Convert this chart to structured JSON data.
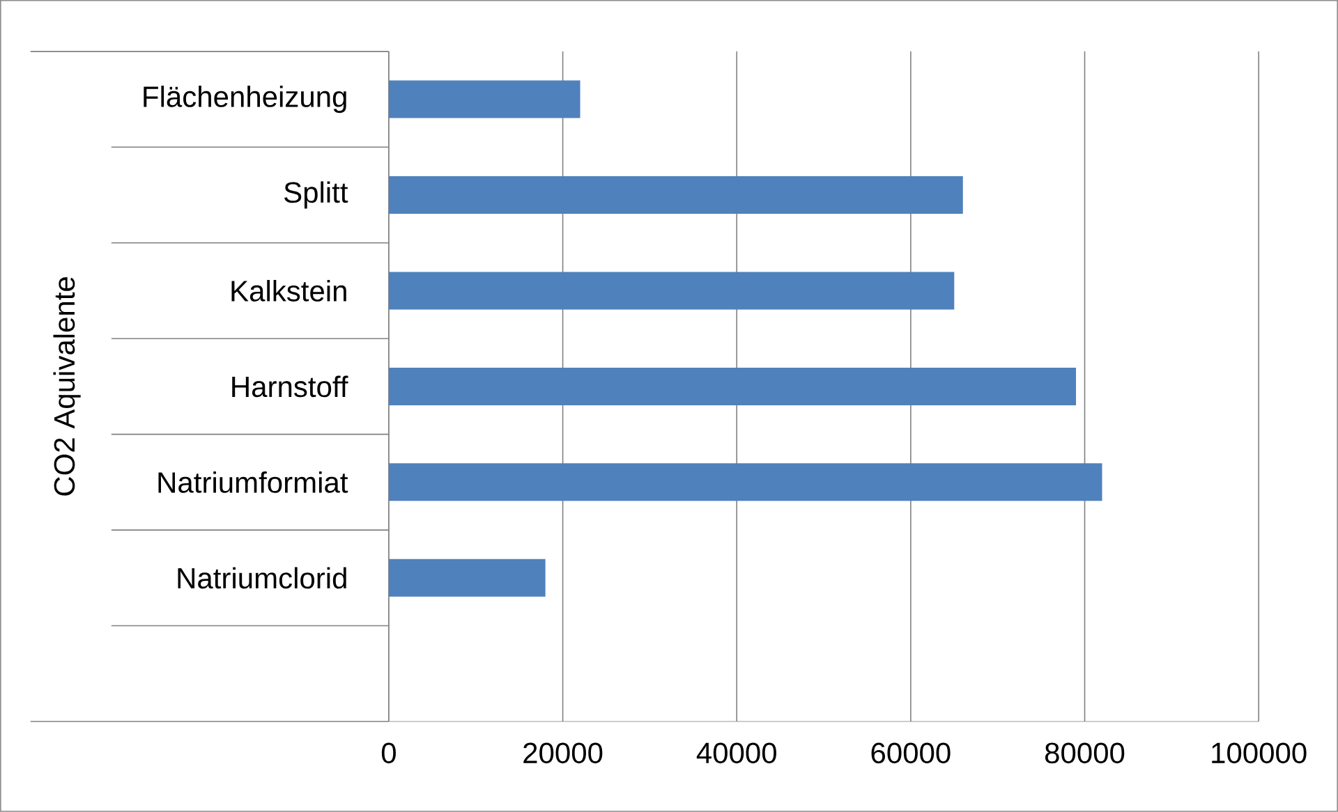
{
  "chart_data": {
    "type": "bar",
    "orientation": "horizontal",
    "ylabel": "CO2 Aquivalente",
    "categories": [
      "Flächenheizung",
      "Splitt",
      "Kalkstein",
      "Harnstoff",
      "Natriumformiat",
      "Natriumclorid",
      null
    ],
    "values": [
      22000,
      66000,
      65000,
      79000,
      82000,
      18000,
      null
    ],
    "color": "#4f81bd",
    "xlim": [
      0,
      100000
    ],
    "xticks": [
      0,
      20000,
      40000,
      60000,
      80000,
      100000
    ],
    "grid": "x"
  }
}
